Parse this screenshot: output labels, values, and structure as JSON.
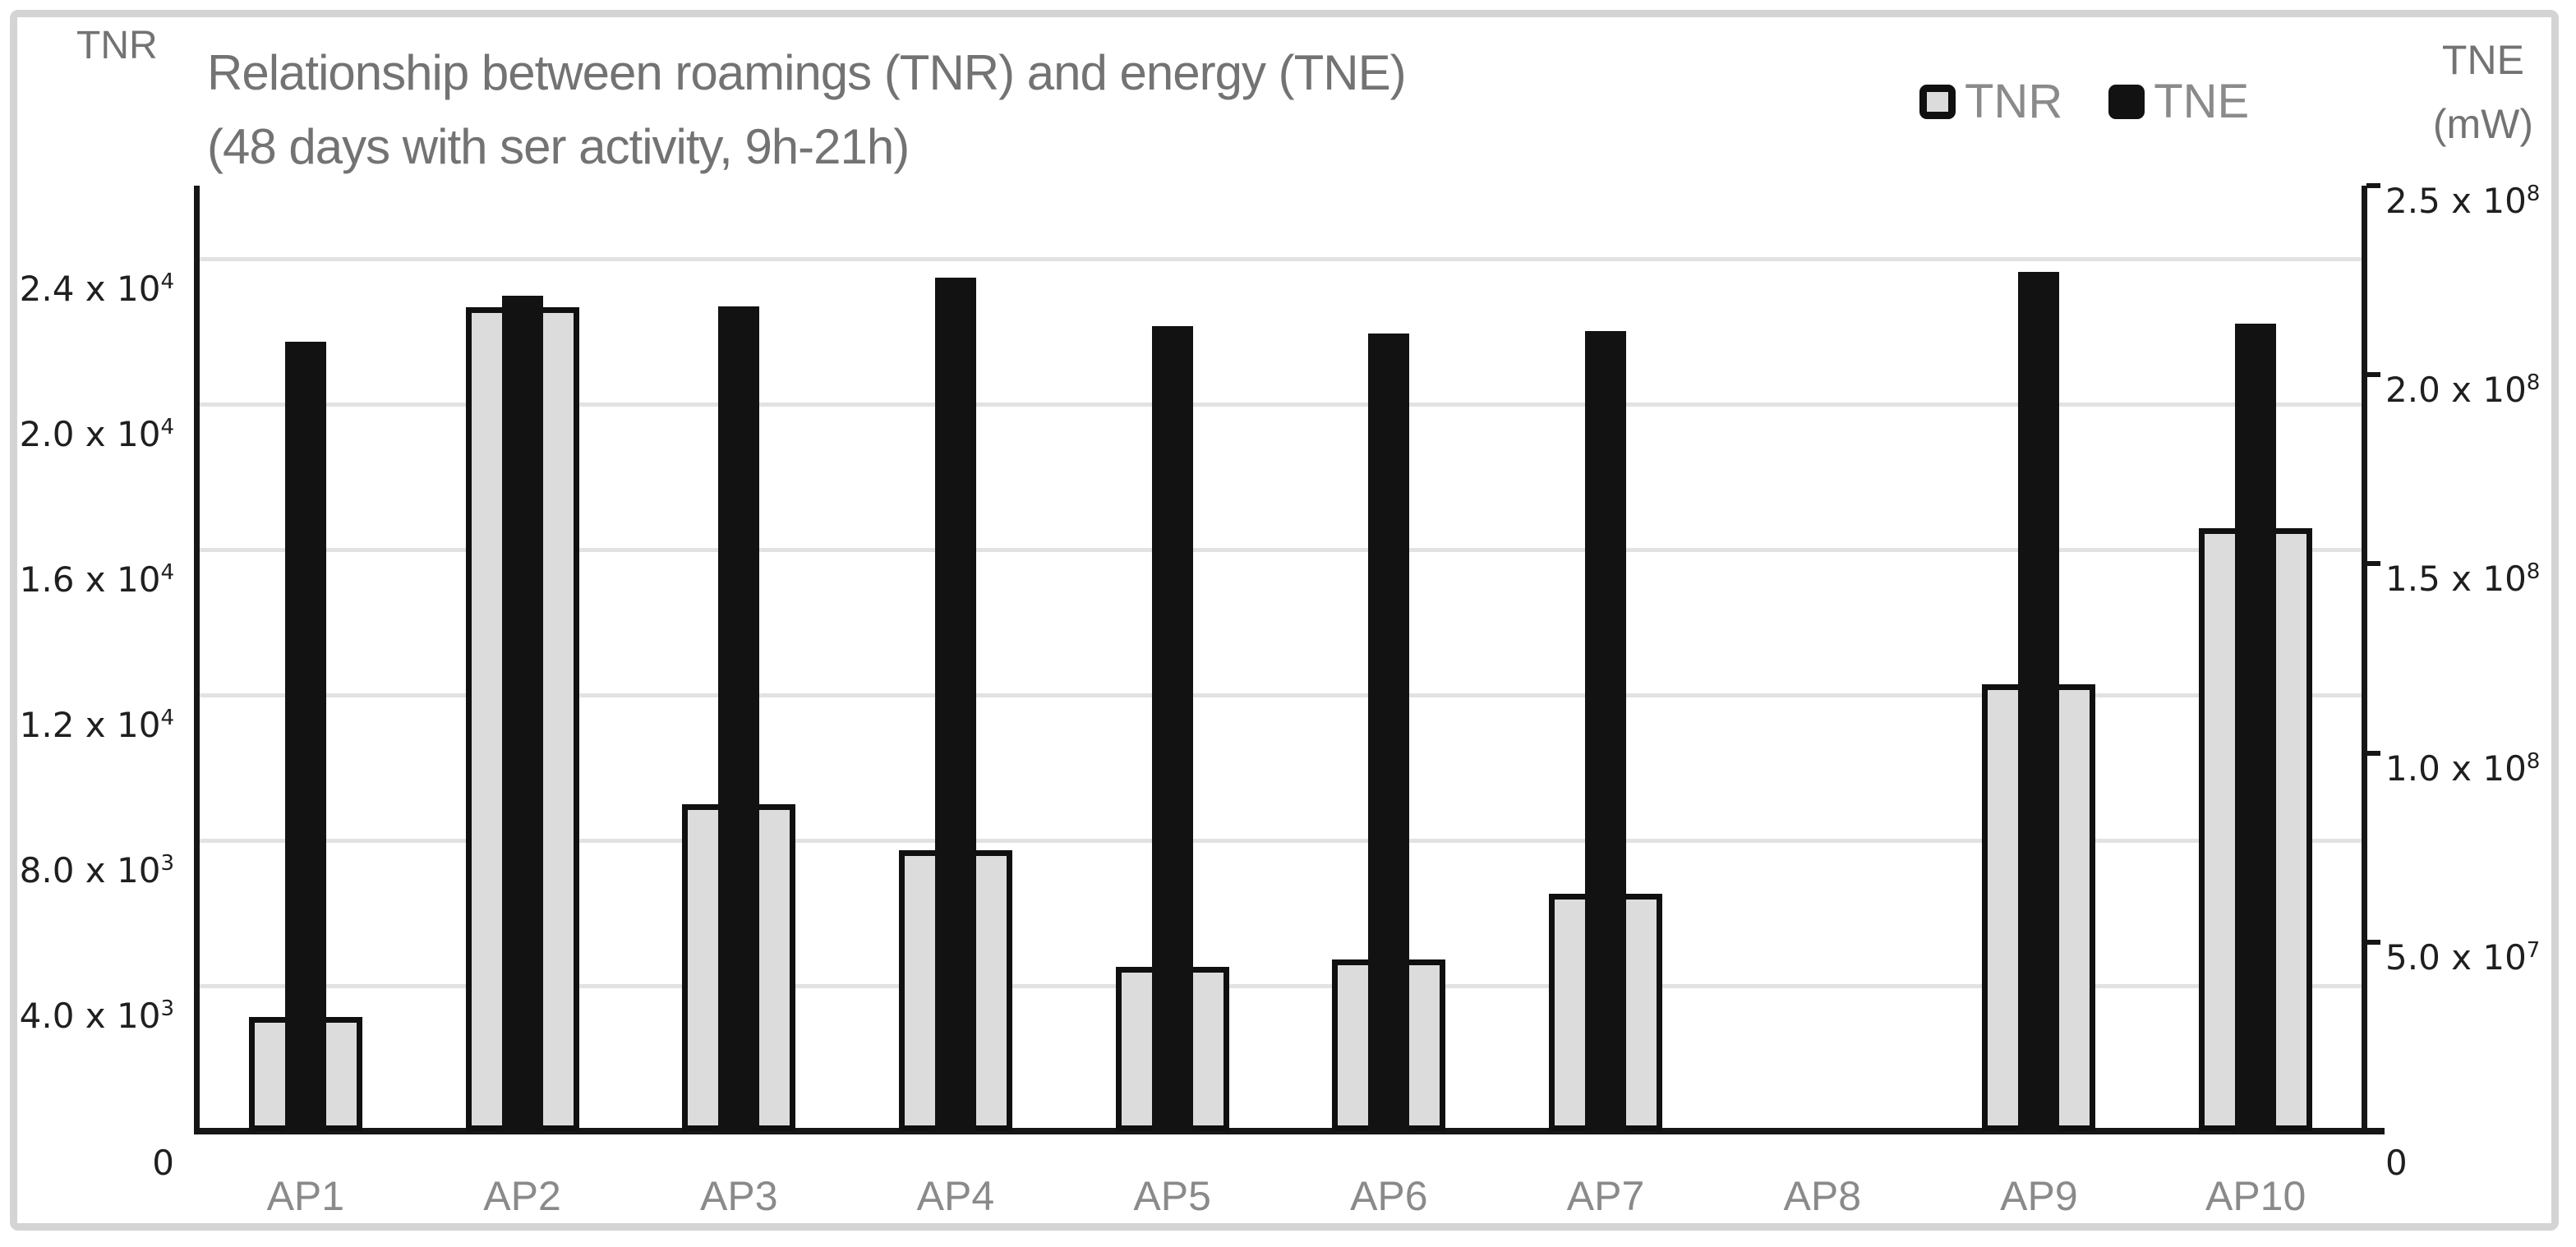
{
  "figure": {
    "title_line1": "Relationship between roamings (TNR) and energy (TNE)",
    "title_line2": "(48 days with ser activity, 9h-21h)",
    "left_axis_corner_title": "TNR",
    "right_axis_title_line1": "TNE",
    "right_axis_title_line2": "(mW)"
  },
  "colors": {
    "tnr_fill": "#dcdcdc",
    "tnr_border": "#101010",
    "tne_fill": "#121212",
    "gridline": "#e2e2e2",
    "axis_line": "#161616",
    "title_text": "#737373",
    "category_text": "#8a8a8a",
    "tick_text": "#1f1f1f",
    "frame_border": "#d4d4d4"
  },
  "chart_data": {
    "type": "bar",
    "title": "Relationship between roamings (TNR) and energy (TNE) (48 days with ser activity, 9h-21h)",
    "legend_position": "top-right",
    "grid": "horizontal gridlines at left-axis ticks",
    "categories": [
      "AP1",
      "AP2",
      "AP3",
      "AP4",
      "AP5",
      "AP6",
      "AP7",
      "AP8",
      "AP9",
      "AP10"
    ],
    "series": [
      {
        "name": "TNR",
        "axis": "left",
        "style": "wide light-gray bar with black outline",
        "values": [
          3130,
          22650,
          8980,
          7720,
          4510,
          4720,
          6530,
          0,
          12290,
          16570
        ]
      },
      {
        "name": "TNE",
        "axis": "right",
        "style": "narrow solid black bar centered on category",
        "values": [
          208800000,
          220800000,
          218000000,
          225700000,
          212800000,
          210800000,
          211600000,
          0,
          227200000,
          213500000
        ]
      }
    ],
    "left_axis": {
      "label": "TNR",
      "max": 26000,
      "ticks": [
        {
          "value": 0,
          "text": "0",
          "sup": ""
        },
        {
          "value": 4000,
          "text": "4.0 x 10",
          "sup": "3"
        },
        {
          "value": 8000,
          "text": "8.0 x 10",
          "sup": "3"
        },
        {
          "value": 12000,
          "text": "1.2 x 10",
          "sup": "4"
        },
        {
          "value": 16000,
          "text": "1.6 x 10",
          "sup": "4"
        },
        {
          "value": 20000,
          "text": "2.0 x 10",
          "sup": "4"
        },
        {
          "value": 24000,
          "text": "2.4 x 10",
          "sup": "4"
        }
      ]
    },
    "right_axis": {
      "label": "TNE (mW)",
      "max": 250000000,
      "ticks": [
        {
          "value": 0,
          "text": "0",
          "sup": ""
        },
        {
          "value": 50000000,
          "text": "5.0 x 10",
          "sup": "7"
        },
        {
          "value": 100000000,
          "text": "1.0 x 10",
          "sup": "8"
        },
        {
          "value": 150000000,
          "text": "1.5 x 10",
          "sup": "8"
        },
        {
          "value": 200000000,
          "text": "2.0 x 10",
          "sup": "8"
        },
        {
          "value": 250000000,
          "text": "2.5 x 10",
          "sup": "8"
        }
      ]
    }
  }
}
